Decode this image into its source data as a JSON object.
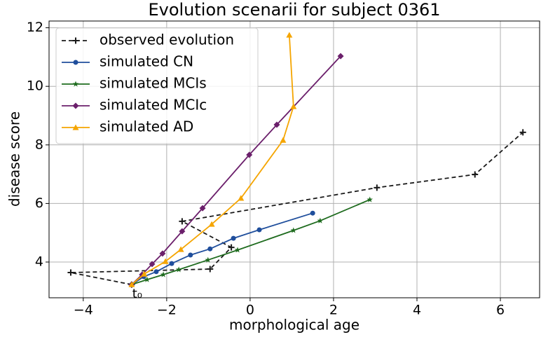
{
  "chart_data": {
    "type": "line",
    "title": "Evolution scenarii for subject 0361",
    "x_label": "morphological age",
    "y_label": "disease score",
    "annotation": "t₀",
    "xlim": [
      -4.82,
      6.94
    ],
    "ylim": [
      2.78,
      12.23
    ],
    "xticks": [
      {
        "value": -4,
        "label": "−4"
      },
      {
        "value": -2,
        "label": "−2"
      },
      0,
      2,
      4,
      6
    ],
    "yticks": [
      4,
      6,
      8,
      10,
      12
    ],
    "grid": true,
    "legend": "upper left",
    "series": [
      {
        "name": "observed evolution",
        "color": "#1a1a1a",
        "marker": "plus",
        "linestyle": "dashed",
        "x": [
          -2.84,
          -4.3,
          -0.96,
          -0.45,
          -1.63,
          3.04,
          5.39,
          6.54
        ],
        "values": [
          3.23,
          3.64,
          3.76,
          4.5,
          5.39,
          6.54,
          6.99,
          8.43
        ]
      },
      {
        "name": "simulated CN",
        "color": "#1f4e9c",
        "marker": "circle",
        "linestyle": "solid",
        "x": [
          -2.84,
          -2.55,
          -2.25,
          -1.88,
          -1.43,
          -0.96,
          -0.4,
          0.22,
          1.5
        ],
        "values": [
          3.23,
          3.5,
          3.67,
          3.95,
          4.24,
          4.45,
          4.81,
          5.1,
          5.67
        ]
      },
      {
        "name": "simulated MCIs",
        "color": "#1e6b1e",
        "marker": "star",
        "linestyle": "solid",
        "x": [
          -2.84,
          -2.47,
          -2.08,
          -1.71,
          -1.01,
          -0.3,
          1.04,
          1.68,
          2.87
        ],
        "values": [
          3.23,
          3.4,
          3.57,
          3.74,
          4.07,
          4.41,
          5.08,
          5.41,
          6.13
        ]
      },
      {
        "name": "simulated MCIc",
        "color": "#6b1f6b",
        "marker": "diamond",
        "linestyle": "solid",
        "x": [
          -2.84,
          -2.59,
          -2.35,
          -2.1,
          -1.63,
          -1.14,
          -0.02,
          0.64,
          2.17
        ],
        "values": [
          3.23,
          3.57,
          3.93,
          4.29,
          5.05,
          5.84,
          7.66,
          8.69,
          11.03
        ]
      },
      {
        "name": "simulated AD",
        "color": "#f5a500",
        "marker": "triangle",
        "linestyle": "solid",
        "x": [
          -2.84,
          -2.54,
          -2.03,
          -1.66,
          -0.92,
          -0.22,
          0.79,
          1.04,
          0.94
        ],
        "values": [
          3.23,
          3.59,
          4.02,
          4.43,
          5.29,
          6.18,
          8.16,
          9.31,
          11.75
        ]
      }
    ]
  }
}
